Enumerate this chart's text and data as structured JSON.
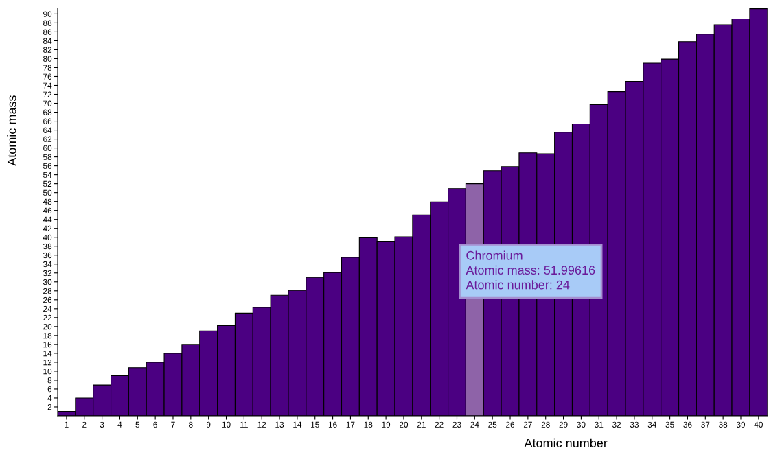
{
  "chart_data": {
    "type": "bar",
    "xlabel": "Atomic number",
    "ylabel": "Atomic mass",
    "categories": [
      "1",
      "2",
      "3",
      "4",
      "5",
      "6",
      "7",
      "8",
      "9",
      "10",
      "11",
      "12",
      "13",
      "14",
      "15",
      "16",
      "17",
      "18",
      "19",
      "20",
      "21",
      "22",
      "23",
      "24",
      "25",
      "26",
      "27",
      "28",
      "29",
      "30",
      "31",
      "32",
      "33",
      "34",
      "35",
      "36",
      "37",
      "38",
      "39",
      "40"
    ],
    "values": [
      1.0,
      4.0,
      6.9,
      9.0,
      10.8,
      12.0,
      14.0,
      16.0,
      19.0,
      20.2,
      23.0,
      24.3,
      27.0,
      28.1,
      31.0,
      32.1,
      35.5,
      39.9,
      39.1,
      40.1,
      45.0,
      47.9,
      50.9,
      52.0,
      54.9,
      55.8,
      58.9,
      58.7,
      63.5,
      65.4,
      69.7,
      72.6,
      74.9,
      79.0,
      79.9,
      83.8,
      85.5,
      87.6,
      88.9,
      91.2
    ],
    "colors": [
      "#4b0082",
      "#4b0082",
      "#4b0082",
      "#4b0082",
      "#4b0082",
      "#4b0082",
      "#4b0082",
      "#4b0082",
      "#4b0082",
      "#4b0082",
      "#4b0082",
      "#4b0082",
      "#4b0082",
      "#4b0082",
      "#4b0082",
      "#4b0082",
      "#4b0082",
      "#4b0082",
      "#4b0082",
      "#4b0082",
      "#4b0082",
      "#4b0082",
      "#4b0082",
      "#8e63a8",
      "#4b0082",
      "#4b0082",
      "#4b0082",
      "#4b0082",
      "#4b0082",
      "#4b0082",
      "#4b0082",
      "#4b0082",
      "#4b0082",
      "#4b0082",
      "#4b0082",
      "#4b0082",
      "#4b0082",
      "#4b0082",
      "#4b0082",
      "#4b0082"
    ],
    "ylim": [
      0,
      91.3
    ],
    "yticks": [
      2,
      4,
      6,
      8,
      10,
      12,
      14,
      16,
      18,
      20,
      22,
      24,
      26,
      28,
      30,
      32,
      34,
      36,
      38,
      40,
      42,
      44,
      46,
      48,
      50,
      52,
      54,
      56,
      58,
      60,
      62,
      64,
      66,
      68,
      70,
      72,
      74,
      76,
      78,
      80,
      82,
      84,
      86,
      88,
      90
    ],
    "grid": false,
    "legend": false,
    "annotations": [
      "Chromium\nAtomic mass: 51.99616\nAtomic number: 24"
    ]
  }
}
